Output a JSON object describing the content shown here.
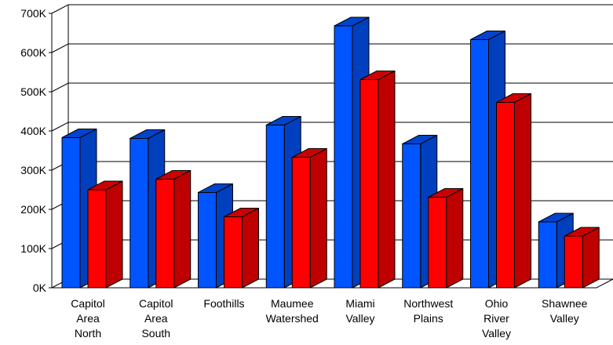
{
  "chart_data": {
    "type": "bar",
    "style": "3d-clustered-column",
    "categories": [
      [
        "Capitol",
        "Area",
        "North"
      ],
      [
        "Capitol",
        "Area",
        "South"
      ],
      [
        "Foothills"
      ],
      [
        "Maumee",
        "Watershed"
      ],
      [
        "Miami",
        "Valley"
      ],
      [
        "Northwest",
        "Plains"
      ],
      [
        "Ohio",
        "River",
        "Valley"
      ],
      [
        "Shawnee",
        "Valley"
      ]
    ],
    "series": [
      {
        "color": "#0055ff",
        "values": [
          383000,
          381000,
          243000,
          415000,
          668000,
          367000,
          633000,
          168000
        ]
      },
      {
        "color": "#ff0000",
        "values": [
          250000,
          277000,
          181000,
          333000,
          531000,
          231000,
          473000,
          132000
        ]
      }
    ],
    "ylim": [
      0,
      700000
    ],
    "yticks": [
      "0K",
      "100K",
      "200K",
      "300K",
      "400K",
      "500K",
      "600K",
      "700K"
    ],
    "title": "",
    "xlabel": "",
    "ylabel": "",
    "grid": true,
    "legend": "none"
  }
}
